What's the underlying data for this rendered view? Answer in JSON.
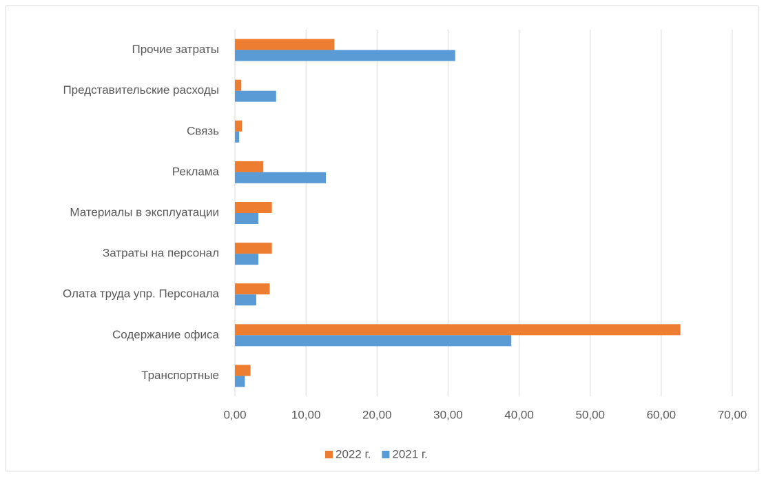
{
  "chart_data": {
    "type": "barh",
    "categories": [
      "Транспортные",
      "Содержание офиса",
      "Олата труда упр. Персонала",
      "Затраты на персонал",
      "Материалы в эксплуатации",
      "Реклама",
      "Связь",
      "Представительские расходы",
      "Прочие затраты"
    ],
    "series": [
      {
        "name": "2022 г.",
        "color": "#ed7d31",
        "values": [
          2.2,
          62.7,
          4.9,
          5.2,
          5.2,
          4.0,
          1.0,
          0.9,
          14.0
        ]
      },
      {
        "name": "2021 г.",
        "color": "#5b9bd5",
        "values": [
          1.4,
          38.9,
          3.0,
          3.3,
          3.3,
          12.8,
          0.6,
          5.8,
          31.0
        ]
      }
    ],
    "xlim": [
      0,
      70
    ],
    "xticks": [
      {
        "value": 0,
        "label": "0,00"
      },
      {
        "value": 10,
        "label": "10,00"
      },
      {
        "value": 20,
        "label": "20,00"
      },
      {
        "value": 30,
        "label": "30,00"
      },
      {
        "value": 40,
        "label": "40,00"
      },
      {
        "value": 50,
        "label": "50,00"
      },
      {
        "value": 60,
        "label": "60,00"
      },
      {
        "value": 70,
        "label": "70,00"
      }
    ],
    "grid": true,
    "legend": "bottom"
  }
}
